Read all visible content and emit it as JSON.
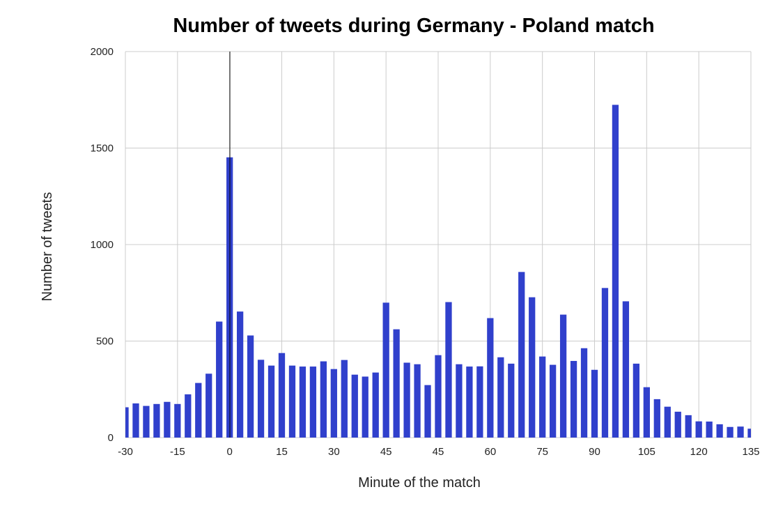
{
  "chart_data": {
    "type": "bar",
    "title": "Number of tweets during Germany - Poland match",
    "xlabel": "Minute of the match",
    "ylabel": "Number of tweets",
    "ylim": [
      0,
      2000
    ],
    "yticks": [
      "0",
      "500",
      "1000",
      "1500",
      "2000"
    ],
    "xticks": [
      "-30",
      "-15",
      "0",
      "15",
      "30",
      "45",
      "45",
      "60",
      "75",
      "90",
      "105",
      "120",
      "135"
    ],
    "grid": true,
    "legend": "none",
    "bar_color": "#3040CC",
    "series": [
      {
        "values": [
          157,
          177,
          164,
          174,
          185,
          174,
          224,
          283,
          331,
          601,
          1452,
          653,
          529,
          403,
          373,
          438,
          373,
          368,
          368,
          395,
          355,
          402,
          326,
          316,
          337,
          699,
          561,
          388,
          380,
          272,
          427,
          702,
          380,
          368,
          369,
          619,
          416,
          383,
          858,
          727,
          420,
          377,
          637,
          397,
          463,
          351,
          775,
          1724,
          706,
          383,
          261,
          199,
          160,
          134,
          116,
          84,
          83,
          69,
          55,
          57,
          46
        ]
      }
    ]
  }
}
